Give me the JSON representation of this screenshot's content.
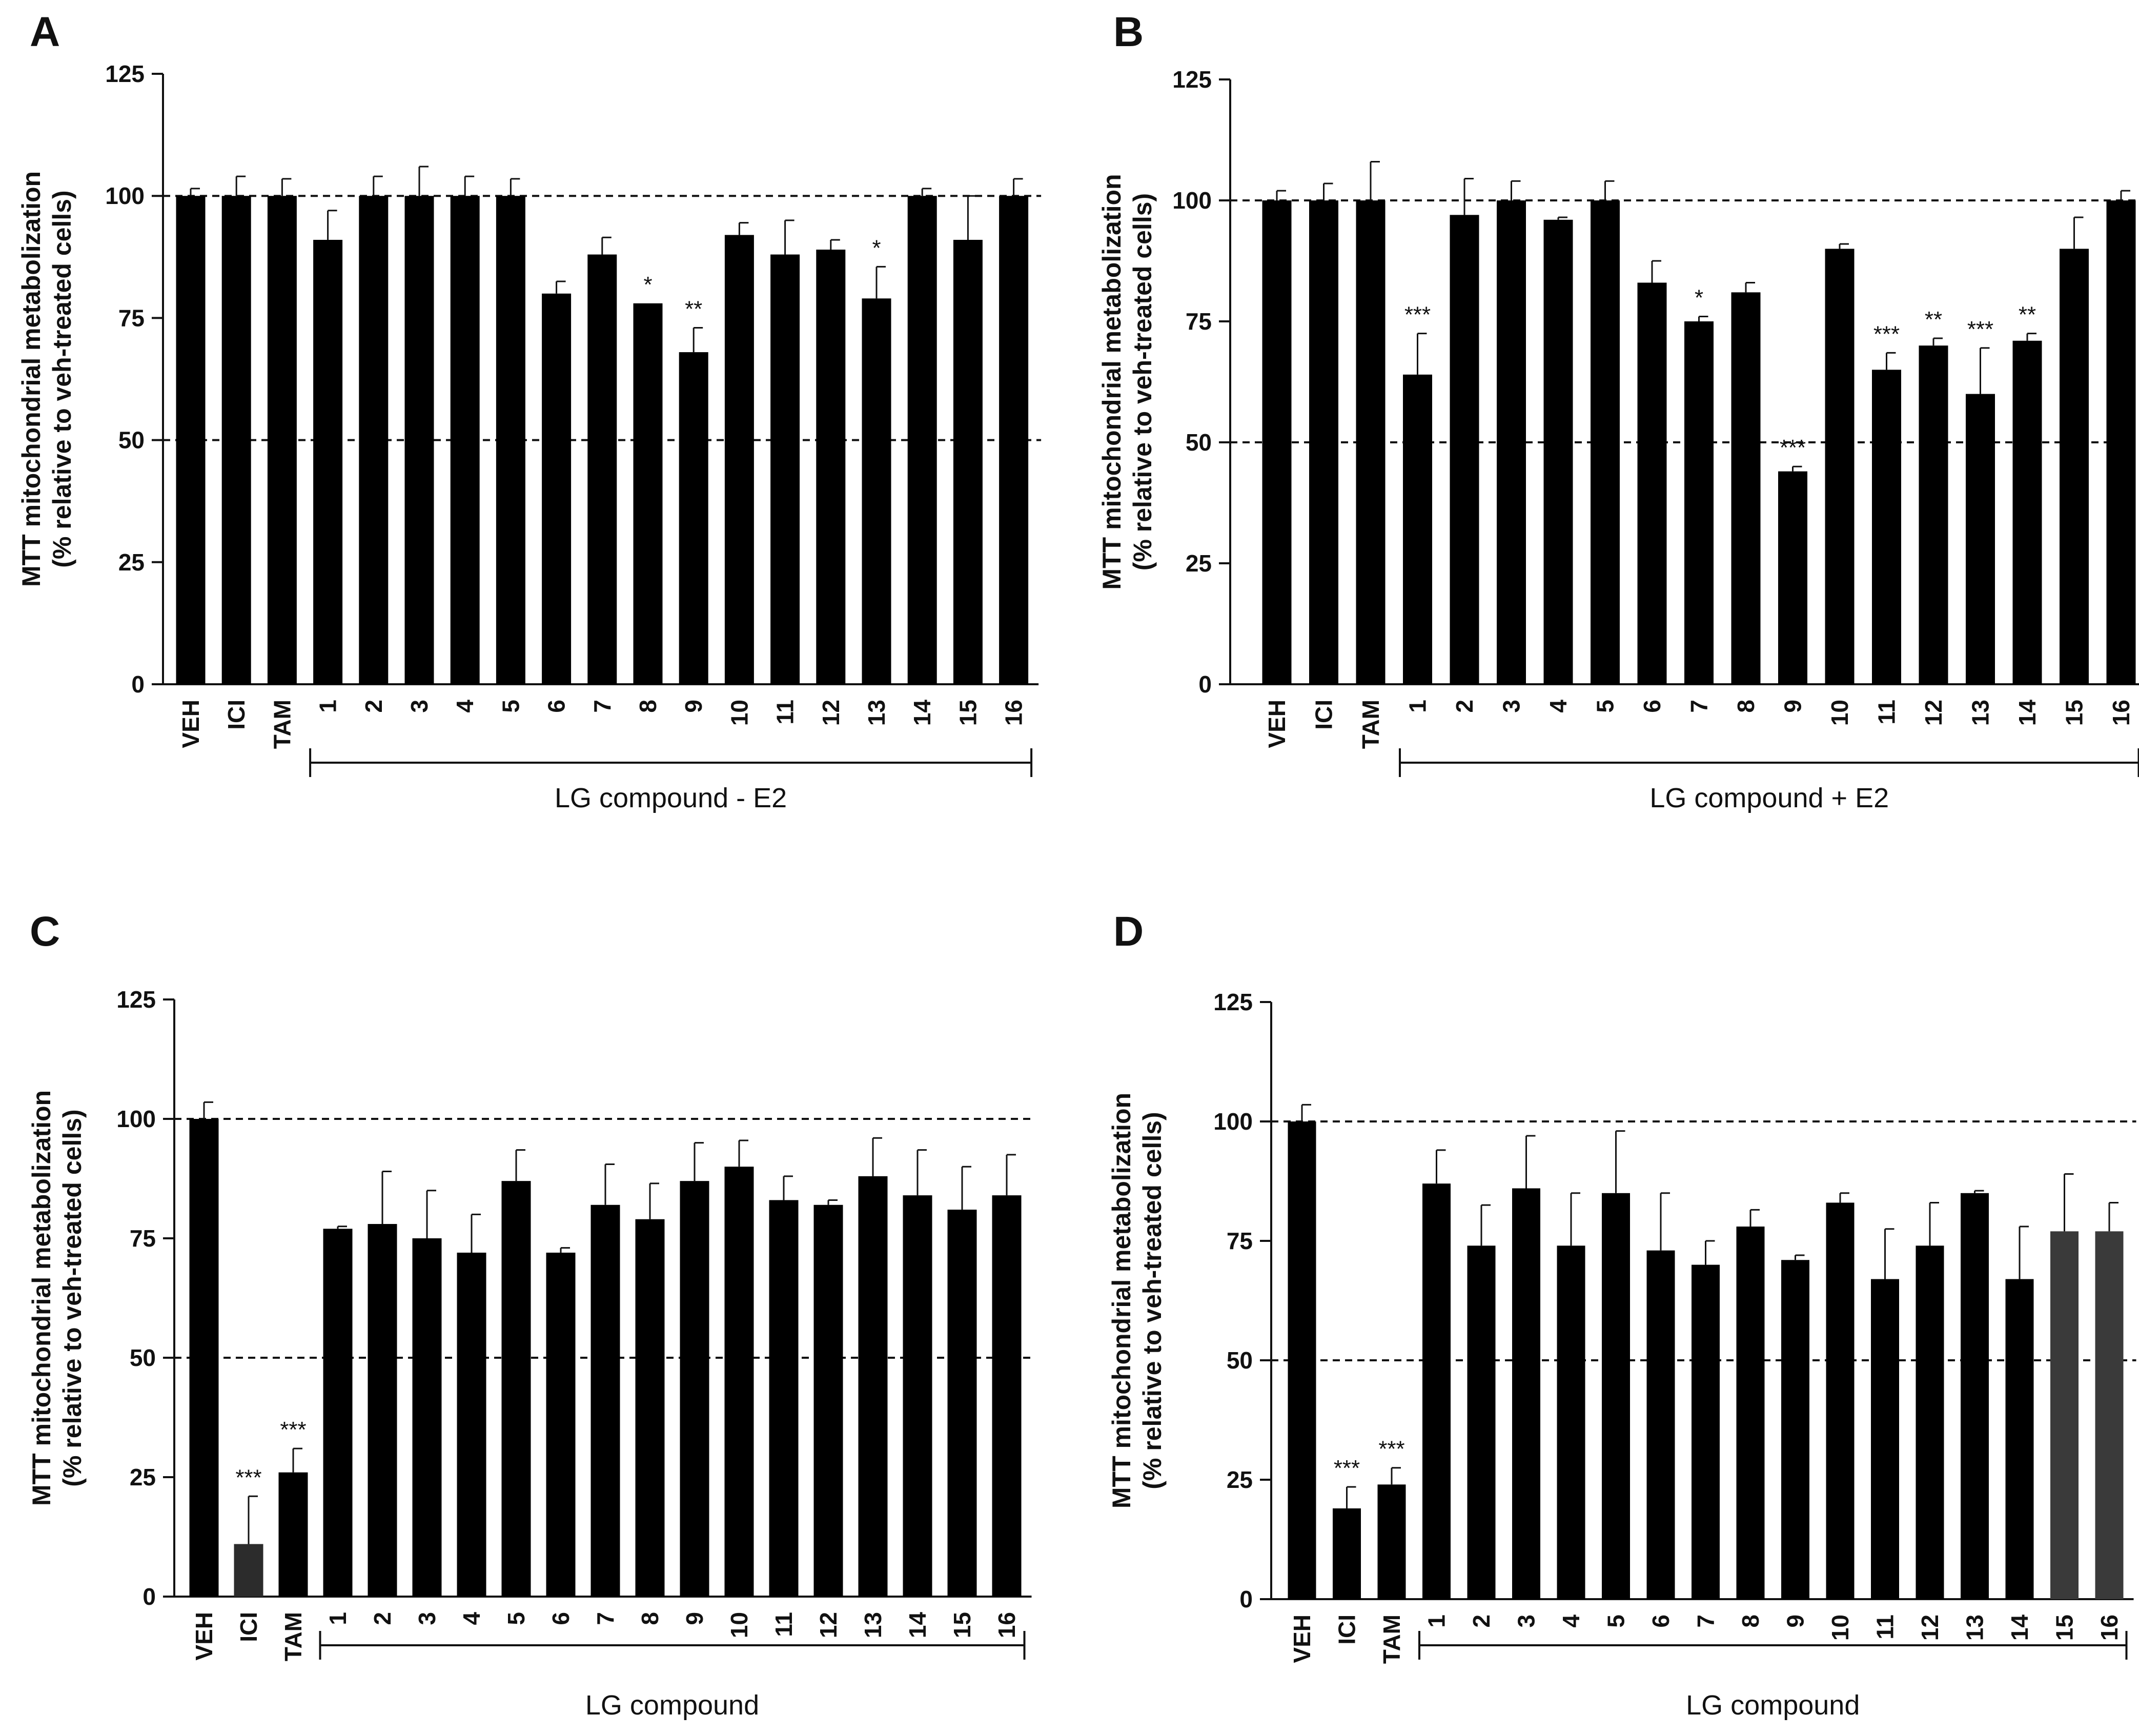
{
  "chart_data": [
    {
      "panel": "A",
      "type": "bar",
      "ylabel_line1": "MTT mitochondrial metabolization",
      "ylabel_line2": "(% relative to veh-treated cells)",
      "ylim": [
        0,
        125
      ],
      "yticks": [
        "0",
        "25",
        "50",
        "75",
        "100",
        "125"
      ],
      "reference_lines": [
        50,
        100
      ],
      "categories": [
        "VEH",
        "ICI",
        "TAM",
        "1",
        "2",
        "3",
        "4",
        "5",
        "6",
        "7",
        "8",
        "9",
        "10",
        "11",
        "12",
        "13",
        "14",
        "15",
        "16"
      ],
      "values": [
        100,
        100,
        100,
        91,
        100,
        100,
        100,
        100,
        80,
        88,
        78,
        68,
        92,
        88,
        89,
        79,
        100,
        91,
        100
      ],
      "errors": [
        1.5,
        4,
        3.5,
        6,
        4,
        6,
        4,
        3.5,
        2.5,
        3.5,
        0,
        5,
        2.5,
        7,
        2,
        6.5,
        1.5,
        9,
        3.5
      ],
      "significance": [
        "",
        "",
        "",
        "",
        "",
        "",
        "",
        "",
        "",
        "",
        "*",
        "**",
        "",
        "",
        "",
        "*",
        "",
        "",
        ""
      ],
      "bar_colors": [
        "#000000",
        "#000000",
        "#000000",
        "#000000",
        "#000000",
        "#000000",
        "#000000",
        "#000000",
        "#000000",
        "#000000",
        "#000000",
        "#000000",
        "#000000",
        "#000000",
        "#000000",
        "#000000",
        "#000000",
        "#000000",
        "#000000"
      ],
      "group_label": "LG compound - E2"
    },
    {
      "panel": "B",
      "type": "bar",
      "ylabel_line1": "MTT mitochondrial metabolization",
      "ylabel_line2": "(% relative to veh-treated cells)",
      "ylim": [
        0,
        125
      ],
      "yticks": [
        "0",
        "25",
        "50",
        "75",
        "100",
        "125"
      ],
      "reference_lines": [
        50,
        100
      ],
      "categories": [
        "VEH",
        "ICI",
        "TAM",
        "1",
        "2",
        "3",
        "4",
        "5",
        "6",
        "7",
        "8",
        "9",
        "10",
        "11",
        "12",
        "13",
        "14",
        "15",
        "16"
      ],
      "values": [
        100,
        100,
        100,
        64,
        97,
        100,
        96,
        100,
        83,
        75,
        81,
        44,
        90,
        65,
        70,
        60,
        71,
        90,
        100
      ],
      "errors": [
        2,
        3.5,
        8,
        8.5,
        7.5,
        4,
        0.5,
        4,
        4.5,
        1,
        2,
        1,
        1,
        3.5,
        1.5,
        9.5,
        1.5,
        6.5,
        2
      ],
      "significance": [
        "",
        "",
        "",
        "***",
        "",
        "",
        "",
        "",
        "",
        "*",
        "",
        "***",
        "",
        "***",
        "**",
        "***",
        "**",
        "",
        ""
      ],
      "bar_colors": [
        "#000000",
        "#000000",
        "#000000",
        "#000000",
        "#000000",
        "#000000",
        "#000000",
        "#000000",
        "#000000",
        "#000000",
        "#000000",
        "#000000",
        "#000000",
        "#000000",
        "#000000",
        "#000000",
        "#000000",
        "#000000",
        "#000000"
      ],
      "group_label": "LG compound + E2"
    },
    {
      "panel": "C",
      "type": "bar",
      "ylabel_line1": "MTT mitochondrial metabolization",
      "ylabel_line2": "(% relative to veh-treated cells)",
      "ylim": [
        0,
        125
      ],
      "yticks": [
        "0",
        "25",
        "50",
        "75",
        "100",
        "125"
      ],
      "reference_lines": [
        50,
        100
      ],
      "categories": [
        "VEH",
        "ICI",
        "TAM",
        "1",
        "2",
        "3",
        "4",
        "5",
        "6",
        "7",
        "8",
        "9",
        "10",
        "11",
        "12",
        "13",
        "14",
        "15",
        "16"
      ],
      "values": [
        100,
        11,
        26,
        77,
        78,
        75,
        72,
        87,
        72,
        82,
        79,
        87,
        90,
        83,
        82,
        88,
        84,
        81,
        84
      ],
      "errors": [
        3.5,
        10,
        5,
        0.5,
        11,
        10,
        8,
        6.5,
        1,
        8.5,
        7.5,
        8,
        5.5,
        5,
        1,
        8,
        9.5,
        9,
        8.5
      ],
      "significance": [
        "",
        "***",
        "***",
        "",
        "",
        "",
        "",
        "",
        "",
        "",
        "",
        "",
        "",
        "",
        "",
        "",
        "",
        "",
        ""
      ],
      "bar_colors": [
        "#000000",
        "#2c2c2c",
        "#000000",
        "#000000",
        "#000000",
        "#000000",
        "#000000",
        "#000000",
        "#000000",
        "#000000",
        "#000000",
        "#000000",
        "#000000",
        "#000000",
        "#000000",
        "#000000",
        "#000000",
        "#000000",
        "#000000"
      ],
      "group_label": "LG compound"
    },
    {
      "panel": "D",
      "type": "bar",
      "ylabel_line1": "MTT mitochondrial metabolization",
      "ylabel_line2": "(% relative to veh-treated cells)",
      "ylim": [
        0,
        125
      ],
      "yticks": [
        "0",
        "25",
        "50",
        "75",
        "100",
        "125"
      ],
      "reference_lines": [
        50,
        100
      ],
      "categories": [
        "VEH",
        "ICI",
        "TAM",
        "1",
        "2",
        "3",
        "4",
        "5",
        "6",
        "7",
        "8",
        "9",
        "10",
        "11",
        "12",
        "13",
        "14",
        "15",
        "16"
      ],
      "values": [
        100,
        19,
        24,
        87,
        74,
        86,
        74,
        85,
        73,
        70,
        78,
        71,
        83,
        67,
        74,
        85,
        67,
        77,
        77
      ],
      "errors": [
        3.5,
        4.5,
        3.5,
        7,
        8.5,
        11,
        11,
        13,
        12,
        5,
        3.5,
        1,
        2,
        10.5,
        9,
        0.5,
        11,
        12,
        6
      ],
      "significance": [
        "",
        "***",
        "***",
        "",
        "",
        "",
        "",
        "",
        "",
        "",
        "",
        "",
        "",
        "",
        "",
        "",
        "",
        "",
        ""
      ],
      "bar_colors": [
        "#000000",
        "#000000",
        "#000000",
        "#000000",
        "#000000",
        "#000000",
        "#000000",
        "#000000",
        "#000000",
        "#000000",
        "#000000",
        "#000000",
        "#000000",
        "#000000",
        "#000000",
        "#000000",
        "#000000",
        "#3a3a3a",
        "#3a3a3a"
      ],
      "group_label": "LG compound"
    }
  ]
}
